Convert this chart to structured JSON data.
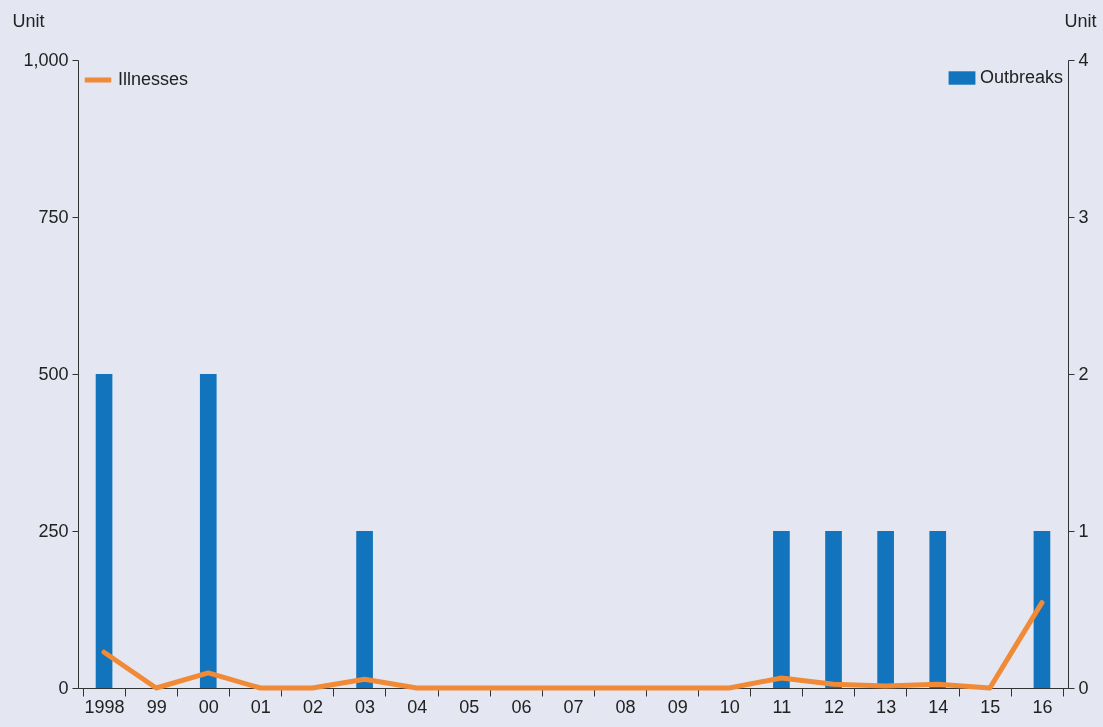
{
  "chart_data": {
    "type": "bar",
    "ylabel": "Unit",
    "y2label": "Unit",
    "categories": [
      "1998",
      "99",
      "00",
      "01",
      "02",
      "03",
      "04",
      "05",
      "06",
      "07",
      "08",
      "09",
      "10",
      "11",
      "12",
      "13",
      "14",
      "15",
      "16"
    ],
    "series": [
      {
        "name": "Outbreaks",
        "axis": "y2",
        "color": "#1174bc",
        "values": [
          2,
          0,
          2,
          0,
          0,
          1,
          0,
          0,
          0,
          0,
          0,
          0,
          0,
          1,
          1,
          1,
          1,
          0,
          1
        ]
      },
      {
        "name": "Illnesses",
        "type": "line",
        "color": "#f08a37",
        "values": [
          57,
          0,
          24,
          0,
          0,
          14,
          0,
          0,
          0,
          0,
          0,
          0,
          0,
          16,
          6,
          3,
          6,
          0,
          136
        ]
      }
    ],
    "ylim": [
      0,
      1000
    ],
    "yticks": [
      0,
      250,
      500,
      750,
      {
        "value": 1000,
        "label": "1,000"
      }
    ],
    "y2lim": [
      0,
      4
    ],
    "y2ticks": [
      0,
      1,
      2,
      3,
      4
    ],
    "grid": false,
    "legend": "top"
  }
}
